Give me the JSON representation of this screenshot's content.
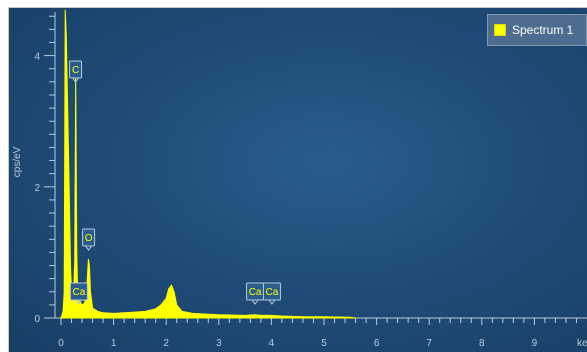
{
  "colors": {
    "background": "#1f4d78",
    "spectrum": "#ffff00",
    "axis": "#b9c9dc",
    "label_box_border": "#b9c9dc",
    "legend_bg": "#4d6c8f"
  },
  "legend": {
    "label": "Spectrum 1"
  },
  "chart_data": {
    "type": "line",
    "ylabel": "cps/eV",
    "xlabel": "keV",
    "xlim": [
      0,
      10
    ],
    "ylim": [
      0,
      4.7
    ],
    "x_ticks": [
      "0",
      "1",
      "2",
      "3",
      "4",
      "5",
      "6",
      "7",
      "8",
      "9"
    ],
    "y_ticks": [
      "0",
      "2",
      "4"
    ],
    "legend_position": "top-right",
    "series": [
      {
        "name": "Spectrum 1",
        "x": [
          0.0,
          0.04,
          0.06,
          0.08,
          0.1,
          0.12,
          0.15,
          0.18,
          0.2,
          0.22,
          0.24,
          0.26,
          0.28,
          0.3,
          0.32,
          0.34,
          0.36,
          0.4,
          0.44,
          0.48,
          0.5,
          0.52,
          0.54,
          0.56,
          0.6,
          0.7,
          0.8,
          1.0,
          1.2,
          1.4,
          1.6,
          1.8,
          1.9,
          2.0,
          2.05,
          2.1,
          2.15,
          2.2,
          2.3,
          2.5,
          3.0,
          3.5,
          3.69,
          3.8,
          4.01,
          4.2,
          4.6,
          5.0,
          5.5,
          5.6
        ],
        "y": [
          0.0,
          0.1,
          0.4,
          4.7,
          4.3,
          3.5,
          2.2,
          0.8,
          0.4,
          0.3,
          0.35,
          0.9,
          3.7,
          1.0,
          0.3,
          0.25,
          0.25,
          0.2,
          0.22,
          0.3,
          0.6,
          0.9,
          0.8,
          0.4,
          0.15,
          0.1,
          0.08,
          0.07,
          0.08,
          0.09,
          0.1,
          0.14,
          0.2,
          0.3,
          0.45,
          0.5,
          0.4,
          0.2,
          0.1,
          0.07,
          0.05,
          0.04,
          0.05,
          0.04,
          0.04,
          0.03,
          0.02,
          0.02,
          0.01,
          0.0
        ]
      }
    ],
    "annotations": [
      {
        "label": "C",
        "x": 0.277
      },
      {
        "label": "O",
        "x": 0.525
      },
      {
        "label": "Ca",
        "x": 0.34
      },
      {
        "label": "Ca",
        "x": 3.69
      },
      {
        "label": "Ca",
        "x": 4.01
      }
    ]
  }
}
